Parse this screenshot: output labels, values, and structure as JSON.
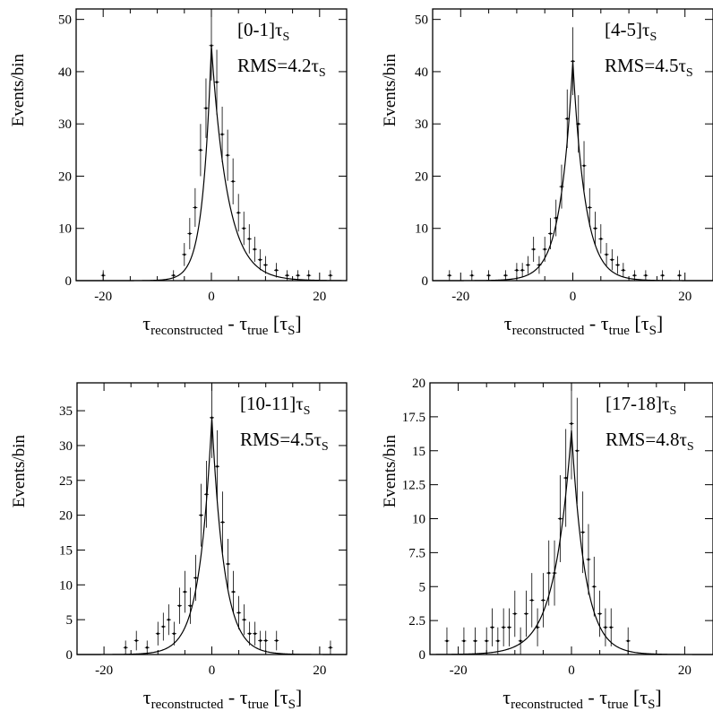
{
  "chart_data": [
    {
      "type": "scatter",
      "range_label": "[0-1]",
      "range_unit": "τ",
      "range_unit_sub": "S",
      "rms_label": "RMS=4.2",
      "rms_unit": "τ",
      "rms_unit_sub": "S",
      "ylabel": "Events/bin",
      "xlabel": {
        "tau1": "τ",
        "sub1": "reconstructed",
        "minus": " - ",
        "tau2": "τ",
        "sub2": "true",
        "unit_open": "  [τ",
        "unit_sub": "S",
        "unit_close": "]"
      },
      "xlim": [
        -25,
        25
      ],
      "ylim": [
        0,
        52
      ],
      "xticks": [
        -20,
        0,
        20
      ],
      "yticks": [
        0,
        10,
        20,
        30,
        40,
        50
      ],
      "fit": {
        "peak": 45,
        "sigma_left": 1.6,
        "sigma_right": 3.0
      },
      "points": [
        {
          "x": -20,
          "y": 1,
          "e": 1
        },
        {
          "x": -7,
          "y": 1,
          "e": 1
        },
        {
          "x": -5,
          "y": 5,
          "e": 2.2
        },
        {
          "x": -4,
          "y": 9,
          "e": 3
        },
        {
          "x": -3,
          "y": 14,
          "e": 3.7
        },
        {
          "x": -2,
          "y": 25,
          "e": 5
        },
        {
          "x": -1,
          "y": 33,
          "e": 5.7
        },
        {
          "x": 0,
          "y": 45,
          "e": 6.7
        },
        {
          "x": 1,
          "y": 38,
          "e": 6.2
        },
        {
          "x": 2,
          "y": 28,
          "e": 5.3
        },
        {
          "x": 3,
          "y": 24,
          "e": 4.9
        },
        {
          "x": 4,
          "y": 19,
          "e": 4.4
        },
        {
          "x": 5,
          "y": 13,
          "e": 3.6
        },
        {
          "x": 6,
          "y": 10,
          "e": 3.2
        },
        {
          "x": 7,
          "y": 8,
          "e": 2.8
        },
        {
          "x": 8,
          "y": 6,
          "e": 2.4
        },
        {
          "x": 9,
          "y": 4,
          "e": 2
        },
        {
          "x": 10,
          "y": 3,
          "e": 1.7
        },
        {
          "x": 12,
          "y": 2,
          "e": 1.4
        },
        {
          "x": 14,
          "y": 1,
          "e": 1
        },
        {
          "x": 16,
          "y": 1,
          "e": 1
        },
        {
          "x": 18,
          "y": 1,
          "e": 1
        },
        {
          "x": 22,
          "y": 1,
          "e": 1
        }
      ]
    },
    {
      "type": "scatter",
      "range_label": "[4-5]",
      "range_unit": "τ",
      "range_unit_sub": "S",
      "rms_label": "RMS=4.5",
      "rms_unit": "τ",
      "rms_unit_sub": "S",
      "ylabel": "Events/bin",
      "xlabel": {
        "tau1": "τ",
        "sub1": "reconstructed",
        "minus": " - ",
        "tau2": "τ",
        "sub2": "true",
        "unit_open": "  [τ",
        "unit_sub": "S",
        "unit_close": "]"
      },
      "xlim": [
        -25,
        25
      ],
      "ylim": [
        0,
        52
      ],
      "xticks": [
        -20,
        0,
        20
      ],
      "yticks": [
        0,
        10,
        20,
        30,
        40,
        50
      ],
      "fit": {
        "peak": 42,
        "sigma_left": 2.2,
        "sigma_right": 2.2
      },
      "points": [
        {
          "x": -22,
          "y": 1,
          "e": 1
        },
        {
          "x": -18,
          "y": 1,
          "e": 1
        },
        {
          "x": -15,
          "y": 1,
          "e": 1
        },
        {
          "x": -12,
          "y": 1,
          "e": 1
        },
        {
          "x": -10,
          "y": 2,
          "e": 1.4
        },
        {
          "x": -9,
          "y": 2,
          "e": 1.4
        },
        {
          "x": -8,
          "y": 3,
          "e": 1.7
        },
        {
          "x": -7,
          "y": 6,
          "e": 2.4
        },
        {
          "x": -6,
          "y": 3,
          "e": 1.7
        },
        {
          "x": -5,
          "y": 6,
          "e": 2.4
        },
        {
          "x": -4,
          "y": 9,
          "e": 3
        },
        {
          "x": -3,
          "y": 12,
          "e": 3.5
        },
        {
          "x": -2,
          "y": 18,
          "e": 4.2
        },
        {
          "x": -1,
          "y": 31,
          "e": 5.6
        },
        {
          "x": 0,
          "y": 42,
          "e": 6.5
        },
        {
          "x": 1,
          "y": 30,
          "e": 5.5
        },
        {
          "x": 2,
          "y": 22,
          "e": 4.7
        },
        {
          "x": 3,
          "y": 14,
          "e": 3.7
        },
        {
          "x": 4,
          "y": 10,
          "e": 3.2
        },
        {
          "x": 5,
          "y": 8,
          "e": 2.8
        },
        {
          "x": 6,
          "y": 5,
          "e": 2.2
        },
        {
          "x": 7,
          "y": 4,
          "e": 2
        },
        {
          "x": 8,
          "y": 3,
          "e": 1.7
        },
        {
          "x": 9,
          "y": 2,
          "e": 1.4
        },
        {
          "x": 11,
          "y": 1,
          "e": 1
        },
        {
          "x": 13,
          "y": 1,
          "e": 1
        },
        {
          "x": 16,
          "y": 1,
          "e": 1
        },
        {
          "x": 19,
          "y": 1,
          "e": 1
        }
      ]
    },
    {
      "type": "scatter",
      "range_label": "[10-11]",
      "range_unit": "τ",
      "range_unit_sub": "S",
      "rms_label": "RMS=4.5",
      "rms_unit": "τ",
      "rms_unit_sub": "S",
      "ylabel": "Events/bin",
      "xlabel": {
        "tau1": "τ",
        "sub1": "reconstructed",
        "minus": " - ",
        "tau2": "τ",
        "sub2": "true",
        "unit_open": "  [τ",
        "unit_sub": "S",
        "unit_close": "]"
      },
      "xlim": [
        -25,
        25
      ],
      "ylim": [
        0,
        39
      ],
      "xticks": [
        -20,
        0,
        20
      ],
      "yticks": [
        0,
        5,
        10,
        15,
        20,
        25,
        30,
        35
      ],
      "fit": {
        "peak": 34,
        "sigma_left": 2.3,
        "sigma_right": 2.3
      },
      "points": [
        {
          "x": -16,
          "y": 1,
          "e": 1
        },
        {
          "x": -14,
          "y": 2,
          "e": 1.4
        },
        {
          "x": -12,
          "y": 1,
          "e": 1
        },
        {
          "x": -10,
          "y": 3,
          "e": 1.7
        },
        {
          "x": -9,
          "y": 4,
          "e": 2
        },
        {
          "x": -8,
          "y": 5,
          "e": 2.2
        },
        {
          "x": -7,
          "y": 3,
          "e": 1.7
        },
        {
          "x": -6,
          "y": 7,
          "e": 2.6
        },
        {
          "x": -5,
          "y": 9,
          "e": 3
        },
        {
          "x": -4,
          "y": 7,
          "e": 2.6
        },
        {
          "x": -3,
          "y": 11,
          "e": 3.3
        },
        {
          "x": -2,
          "y": 20,
          "e": 4.5
        },
        {
          "x": -1,
          "y": 23,
          "e": 4.8
        },
        {
          "x": 0,
          "y": 34,
          "e": 5.8
        },
        {
          "x": 1,
          "y": 27,
          "e": 5.2
        },
        {
          "x": 2,
          "y": 19,
          "e": 4.4
        },
        {
          "x": 3,
          "y": 13,
          "e": 3.6
        },
        {
          "x": 4,
          "y": 9,
          "e": 3
        },
        {
          "x": 5,
          "y": 6,
          "e": 2.4
        },
        {
          "x": 6,
          "y": 5,
          "e": 2.2
        },
        {
          "x": 7,
          "y": 3,
          "e": 1.7
        },
        {
          "x": 8,
          "y": 3,
          "e": 1.7
        },
        {
          "x": 9,
          "y": 2,
          "e": 1.4
        },
        {
          "x": 10,
          "y": 2,
          "e": 1.4
        },
        {
          "x": 12,
          "y": 2,
          "e": 1.4
        },
        {
          "x": 22,
          "y": 1,
          "e": 1
        }
      ]
    },
    {
      "type": "scatter",
      "range_label": "[17-18]",
      "range_unit": "τ",
      "range_unit_sub": "S",
      "rms_label": "RMS=4.8",
      "rms_unit": "τ",
      "rms_unit_sub": "S",
      "ylabel": "Events/bin",
      "xlabel": {
        "tau1": "τ",
        "sub1": "reconstructed",
        "minus": " - ",
        "tau2": "τ",
        "sub2": "true",
        "unit_open": "  [τ",
        "unit_sub": "S",
        "unit_close": "]"
      },
      "xlim": [
        -25,
        25
      ],
      "ylim": [
        0,
        20
      ],
      "xticks": [
        -20,
        0,
        20
      ],
      "yticks": [
        0,
        2.5,
        5,
        7.5,
        10,
        12.5,
        15,
        17.5,
        20
      ],
      "fit": {
        "peak": 16.5,
        "sigma_left": 3.0,
        "sigma_right": 2.4
      },
      "points": [
        {
          "x": -22,
          "y": 1,
          "e": 1
        },
        {
          "x": -19,
          "y": 1,
          "e": 1
        },
        {
          "x": -17,
          "y": 1,
          "e": 1
        },
        {
          "x": -15,
          "y": 1,
          "e": 1
        },
        {
          "x": -14,
          "y": 2,
          "e": 1.4
        },
        {
          "x": -13,
          "y": 1,
          "e": 1
        },
        {
          "x": -12,
          "y": 2,
          "e": 1.4
        },
        {
          "x": -11,
          "y": 2,
          "e": 1.4
        },
        {
          "x": -10,
          "y": 3,
          "e": 1.7
        },
        {
          "x": -9,
          "y": 1,
          "e": 1
        },
        {
          "x": -8,
          "y": 3,
          "e": 1.7
        },
        {
          "x": -7,
          "y": 4,
          "e": 2
        },
        {
          "x": -6,
          "y": 2,
          "e": 1.4
        },
        {
          "x": -5,
          "y": 4,
          "e": 2
        },
        {
          "x": -4,
          "y": 6,
          "e": 2.4
        },
        {
          "x": -3,
          "y": 6,
          "e": 2.4
        },
        {
          "x": -2,
          "y": 10,
          "e": 3.2
        },
        {
          "x": -1,
          "y": 13,
          "e": 3.6
        },
        {
          "x": 0,
          "y": 17,
          "e": 4.1
        },
        {
          "x": 1,
          "y": 15,
          "e": 3.9
        },
        {
          "x": 2,
          "y": 9,
          "e": 3
        },
        {
          "x": 3,
          "y": 7,
          "e": 2.6
        },
        {
          "x": 4,
          "y": 5,
          "e": 2.2
        },
        {
          "x": 5,
          "y": 3,
          "e": 1.7
        },
        {
          "x": 6,
          "y": 2,
          "e": 1.4
        },
        {
          "x": 7,
          "y": 2,
          "e": 1.4
        },
        {
          "x": 10,
          "y": 1,
          "e": 1
        }
      ]
    }
  ]
}
